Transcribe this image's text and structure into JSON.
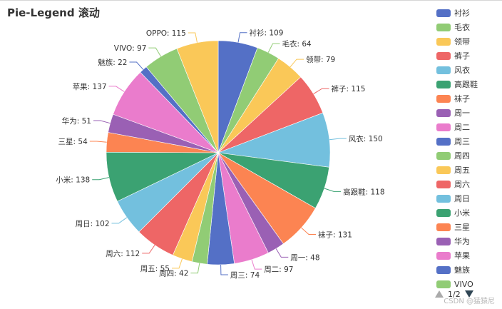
{
  "chart_data": {
    "type": "pie",
    "title": "Pie-Legend 滚动",
    "categories": [
      "衬衫",
      "毛衣",
      "领带",
      "裤子",
      "风衣",
      "高跟鞋",
      "袜子",
      "周一",
      "周二",
      "周三",
      "周四",
      "周五",
      "周六",
      "周日",
      "小米",
      "三星",
      "华为",
      "苹果",
      "魅族",
      "VIVO",
      "OPPO"
    ],
    "values": [
      109,
      64,
      79,
      115,
      150,
      118,
      131,
      48,
      97,
      74,
      42,
      55,
      112,
      102,
      138,
      54,
      51,
      137,
      22,
      97,
      115
    ],
    "slice_labels": [
      "衬衫: 109",
      "毛衣: 64",
      "领带: 79",
      "裤子: 115",
      "风衣: 150",
      "高跟鞋: 118",
      "袜子: 131",
      "周一: 48",
      "周二: 97",
      "周三: 74",
      "周四: 42",
      "周五: 55",
      "周六: 112",
      "周日: 102",
      "小米: 138",
      "三星: 54",
      "华为: 51",
      "苹果: 137",
      "魅族: 22",
      "VIVO: 97",
      "OPPO: 115"
    ],
    "colors": [
      "#5470c6",
      "#91cc75",
      "#fac858",
      "#ee6666",
      "#73c0de",
      "#3ba272",
      "#fc8452",
      "#9a60b4",
      "#ea7ccc"
    ],
    "legend_placement": "right",
    "legend_visible": [
      "衬衫",
      "毛衣",
      "领带",
      "裤子",
      "风衣",
      "高跟鞋",
      "袜子",
      "周一",
      "周二",
      "周三",
      "周四",
      "周五",
      "周六",
      "周日",
      "小米",
      "三星",
      "华为",
      "苹果",
      "魅族",
      "VIVO"
    ]
  },
  "legend_pager": {
    "text": "1/2"
  },
  "watermark": "CSDN @猛猿尼"
}
